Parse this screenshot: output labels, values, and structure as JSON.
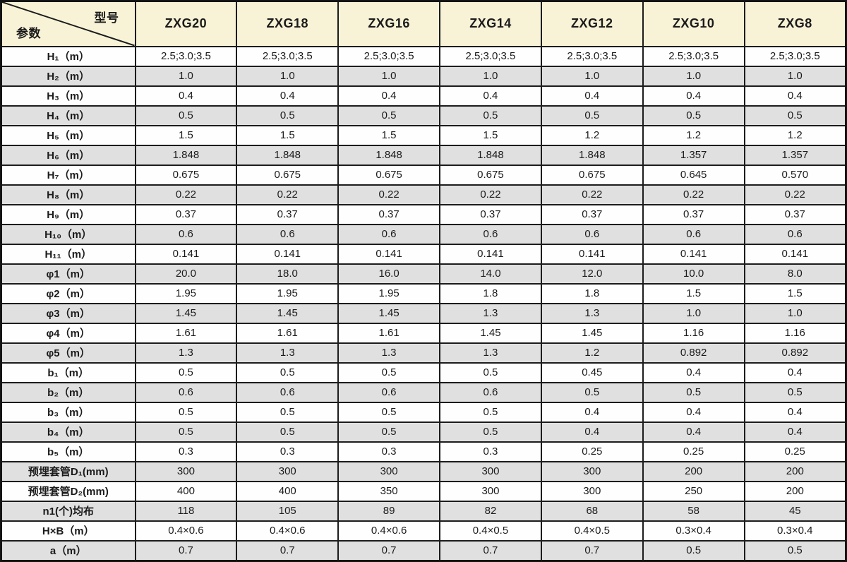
{
  "table": {
    "corner": {
      "top_right_label": "型号",
      "bottom_left_label": "参数"
    },
    "columns": [
      "ZXG20",
      "ZXG18",
      "ZXG16",
      "ZXG14",
      "ZXG12",
      "ZXG10",
      "ZXG8"
    ],
    "rows": [
      {
        "label": "H₁（m）",
        "values": [
          "2.5;3.0;3.5",
          "2.5;3.0;3.5",
          "2.5;3.0;3.5",
          "2.5;3.0;3.5",
          "2.5;3.0;3.5",
          "2.5;3.0;3.5",
          "2.5;3.0;3.5"
        ]
      },
      {
        "label": "H₂（m）",
        "values": [
          "1.0",
          "1.0",
          "1.0",
          "1.0",
          "1.0",
          "1.0",
          "1.0"
        ]
      },
      {
        "label": "H₃（m）",
        "values": [
          "0.4",
          "0.4",
          "0.4",
          "0.4",
          "0.4",
          "0.4",
          "0.4"
        ]
      },
      {
        "label": "H₄（m）",
        "values": [
          "0.5",
          "0.5",
          "0.5",
          "0.5",
          "0.5",
          "0.5",
          "0.5"
        ]
      },
      {
        "label": "H₅（m）",
        "values": [
          "1.5",
          "1.5",
          "1.5",
          "1.5",
          "1.2",
          "1.2",
          "1.2"
        ]
      },
      {
        "label": "H₆（m）",
        "values": [
          "1.848",
          "1.848",
          "1.848",
          "1.848",
          "1.848",
          "1.357",
          "1.357"
        ]
      },
      {
        "label": "H₇（m）",
        "values": [
          "0.675",
          "0.675",
          "0.675",
          "0.675",
          "0.675",
          "0.645",
          "0.570"
        ]
      },
      {
        "label": "H₈（m）",
        "values": [
          "0.22",
          "0.22",
          "0.22",
          "0.22",
          "0.22",
          "0.22",
          "0.22"
        ]
      },
      {
        "label": "H₉（m）",
        "values": [
          "0.37",
          "0.37",
          "0.37",
          "0.37",
          "0.37",
          "0.37",
          "0.37"
        ]
      },
      {
        "label": "H₁₀（m）",
        "values": [
          "0.6",
          "0.6",
          "0.6",
          "0.6",
          "0.6",
          "0.6",
          "0.6"
        ]
      },
      {
        "label": "H₁₁（m）",
        "values": [
          "0.141",
          "0.141",
          "0.141",
          "0.141",
          "0.141",
          "0.141",
          "0.141"
        ]
      },
      {
        "label": "φ1（m）",
        "values": [
          "20.0",
          "18.0",
          "16.0",
          "14.0",
          "12.0",
          "10.0",
          "8.0"
        ]
      },
      {
        "label": "φ2（m）",
        "values": [
          "1.95",
          "1.95",
          "1.95",
          "1.8",
          "1.8",
          "1.5",
          "1.5"
        ]
      },
      {
        "label": "φ3（m）",
        "values": [
          "1.45",
          "1.45",
          "1.45",
          "1.3",
          "1.3",
          "1.0",
          "1.0"
        ]
      },
      {
        "label": "φ4（m）",
        "values": [
          "1.61",
          "1.61",
          "1.61",
          "1.45",
          "1.45",
          "1.16",
          "1.16"
        ]
      },
      {
        "label": "φ5（m）",
        "values": [
          "1.3",
          "1.3",
          "1.3",
          "1.3",
          "1.2",
          "0.892",
          "0.892"
        ]
      },
      {
        "label": "b₁（m）",
        "values": [
          "0.5",
          "0.5",
          "0.5",
          "0.5",
          "0.45",
          "0.4",
          "0.4"
        ]
      },
      {
        "label": "b₂（m）",
        "values": [
          "0.6",
          "0.6",
          "0.6",
          "0.6",
          "0.5",
          "0.5",
          "0.5"
        ]
      },
      {
        "label": "b₃（m）",
        "values": [
          "0.5",
          "0.5",
          "0.5",
          "0.5",
          "0.4",
          "0.4",
          "0.4"
        ]
      },
      {
        "label": "b₄（m）",
        "values": [
          "0.5",
          "0.5",
          "0.5",
          "0.5",
          "0.4",
          "0.4",
          "0.4"
        ]
      },
      {
        "label": "b₅（m）",
        "values": [
          "0.3",
          "0.3",
          "0.3",
          "0.3",
          "0.25",
          "0.25",
          "0.25"
        ]
      },
      {
        "label": "预埋套管D₁(mm)",
        "values": [
          "300",
          "300",
          "300",
          "300",
          "300",
          "200",
          "200"
        ]
      },
      {
        "label": "预埋套管D₂(mm)",
        "values": [
          "400",
          "400",
          "350",
          "300",
          "300",
          "250",
          "200"
        ]
      },
      {
        "label": "n1(个)均布",
        "values": [
          "118",
          "105",
          "89",
          "82",
          "68",
          "58",
          "45"
        ]
      },
      {
        "label": "H×B（m）",
        "values": [
          "0.4×0.6",
          "0.4×0.6",
          "0.4×0.6",
          "0.4×0.5",
          "0.4×0.5",
          "0.3×0.4",
          "0.3×0.4"
        ]
      },
      {
        "label": "a（m）",
        "values": [
          "0.7",
          "0.7",
          "0.7",
          "0.7",
          "0.7",
          "0.5",
          "0.5"
        ]
      }
    ],
    "colors": {
      "header_bg": "#f8f3d7",
      "row_gray": "#e0e0e0",
      "row_white": "#fefefe",
      "border": "#1c1c1c"
    }
  }
}
